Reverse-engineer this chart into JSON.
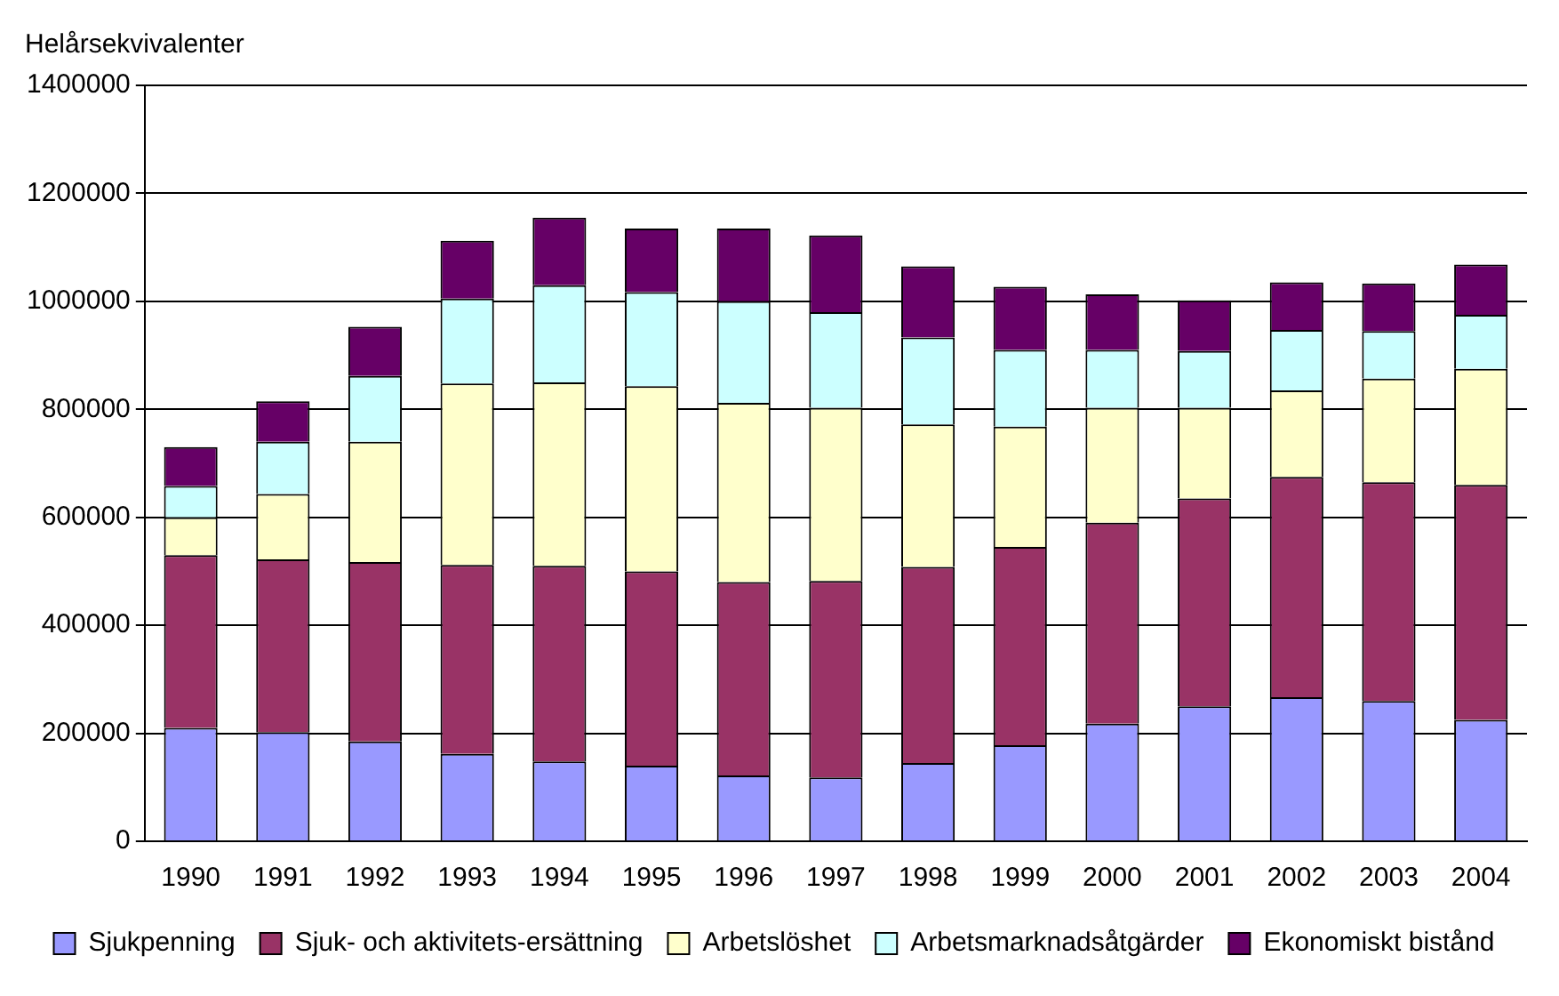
{
  "chart_data": {
    "type": "bar",
    "stacked": true,
    "ylabel": "Helårsekvivalenter",
    "categories": [
      "1990",
      "1991",
      "1992",
      "1993",
      "1994",
      "1995",
      "1996",
      "1997",
      "1998",
      "1999",
      "2000",
      "2001",
      "2002",
      "2003",
      "2004"
    ],
    "series": [
      {
        "name": "Sjukpenning",
        "color": "#9999ff",
        "values": [
          210000,
          202000,
          185000,
          162000,
          148000,
          140000,
          122000,
          118000,
          145000,
          178000,
          218000,
          250000,
          267000,
          260000,
          225000
        ]
      },
      {
        "name": "Sjuk- och aktivitets-ersättning",
        "color": "#993366",
        "values": [
          320000,
          320000,
          332000,
          350000,
          362000,
          360000,
          358000,
          364000,
          363000,
          367000,
          372000,
          385000,
          408000,
          405000,
          435000
        ]
      },
      {
        "name": "Arbetslöshet",
        "color": "#ffffcc",
        "values": [
          70000,
          121000,
          223000,
          336000,
          340000,
          343000,
          332000,
          321000,
          264000,
          223000,
          213000,
          168000,
          160000,
          192000,
          215000
        ]
      },
      {
        "name": "Arbetsmarknadsåtgärder",
        "color": "#ccffff",
        "values": [
          58000,
          97000,
          122000,
          157000,
          180000,
          174000,
          188000,
          177000,
          161000,
          142000,
          107000,
          105000,
          112000,
          88000,
          100000
        ]
      },
      {
        "name": "Ekonomiskt bistånd",
        "color": "#660066",
        "values": [
          72000,
          75000,
          91000,
          107000,
          125000,
          118000,
          135000,
          142000,
          132000,
          117000,
          103000,
          94000,
          88000,
          88000,
          93000
        ]
      }
    ],
    "ylim": [
      0,
      1400000
    ],
    "yticks": [
      0,
      200000,
      400000,
      600000,
      800000,
      1000000,
      1200000,
      1400000
    ],
    "grid": "y",
    "legend": "bottom"
  }
}
